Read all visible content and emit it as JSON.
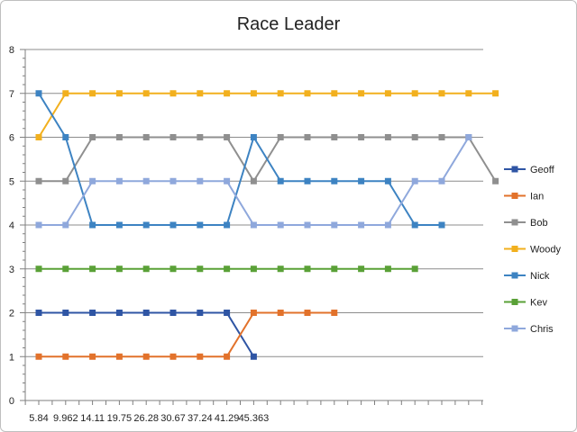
{
  "chart_data": {
    "type": "line",
    "title": "Race Leader",
    "xlabel": "",
    "ylabel": "",
    "ylim": [
      0,
      8
    ],
    "yticks": [
      0,
      1,
      2,
      3,
      4,
      5,
      6,
      7,
      8
    ],
    "grid": true,
    "legend_position": "right",
    "x_tick_labels": [
      "5.84",
      "9.962",
      "14.11",
      "19.75",
      "26.28",
      "30.67",
      "37.24",
      "41.29",
      "45.363"
    ],
    "series": [
      {
        "name": "Geoff",
        "color": "#2f55a4",
        "values": [
          2,
          2,
          2,
          2,
          2,
          2,
          2,
          2,
          1
        ]
      },
      {
        "name": "Ian",
        "color": "#e2722b",
        "values": [
          1,
          1,
          1,
          1,
          1,
          1,
          1,
          1,
          2,
          2,
          2,
          2
        ]
      },
      {
        "name": "Bob",
        "color": "#8f8f8f",
        "values": [
          5,
          5,
          6,
          6,
          6,
          6,
          6,
          6,
          5,
          6,
          6,
          6,
          6,
          6,
          6,
          6,
          6,
          5
        ]
      },
      {
        "name": "Woody",
        "color": "#f2b01e",
        "values": [
          6,
          7,
          7,
          7,
          7,
          7,
          7,
          7,
          7,
          7,
          7,
          7,
          7,
          7,
          7,
          7,
          7,
          7
        ]
      },
      {
        "name": "Nick",
        "color": "#3d83c2",
        "values": [
          7,
          6,
          4,
          4,
          4,
          4,
          4,
          4,
          6,
          5,
          5,
          5,
          5,
          5,
          4,
          4
        ]
      },
      {
        "name": "Kev",
        "color": "#5aa137",
        "values": [
          3,
          3,
          3,
          3,
          3,
          3,
          3,
          3,
          3,
          3,
          3,
          3,
          3,
          3,
          3
        ]
      },
      {
        "name": "Chris",
        "color": "#8fa8dc",
        "values": [
          4,
          4,
          5,
          5,
          5,
          5,
          5,
          5,
          4,
          4,
          4,
          4,
          4,
          4,
          5,
          5,
          6
        ]
      }
    ]
  }
}
